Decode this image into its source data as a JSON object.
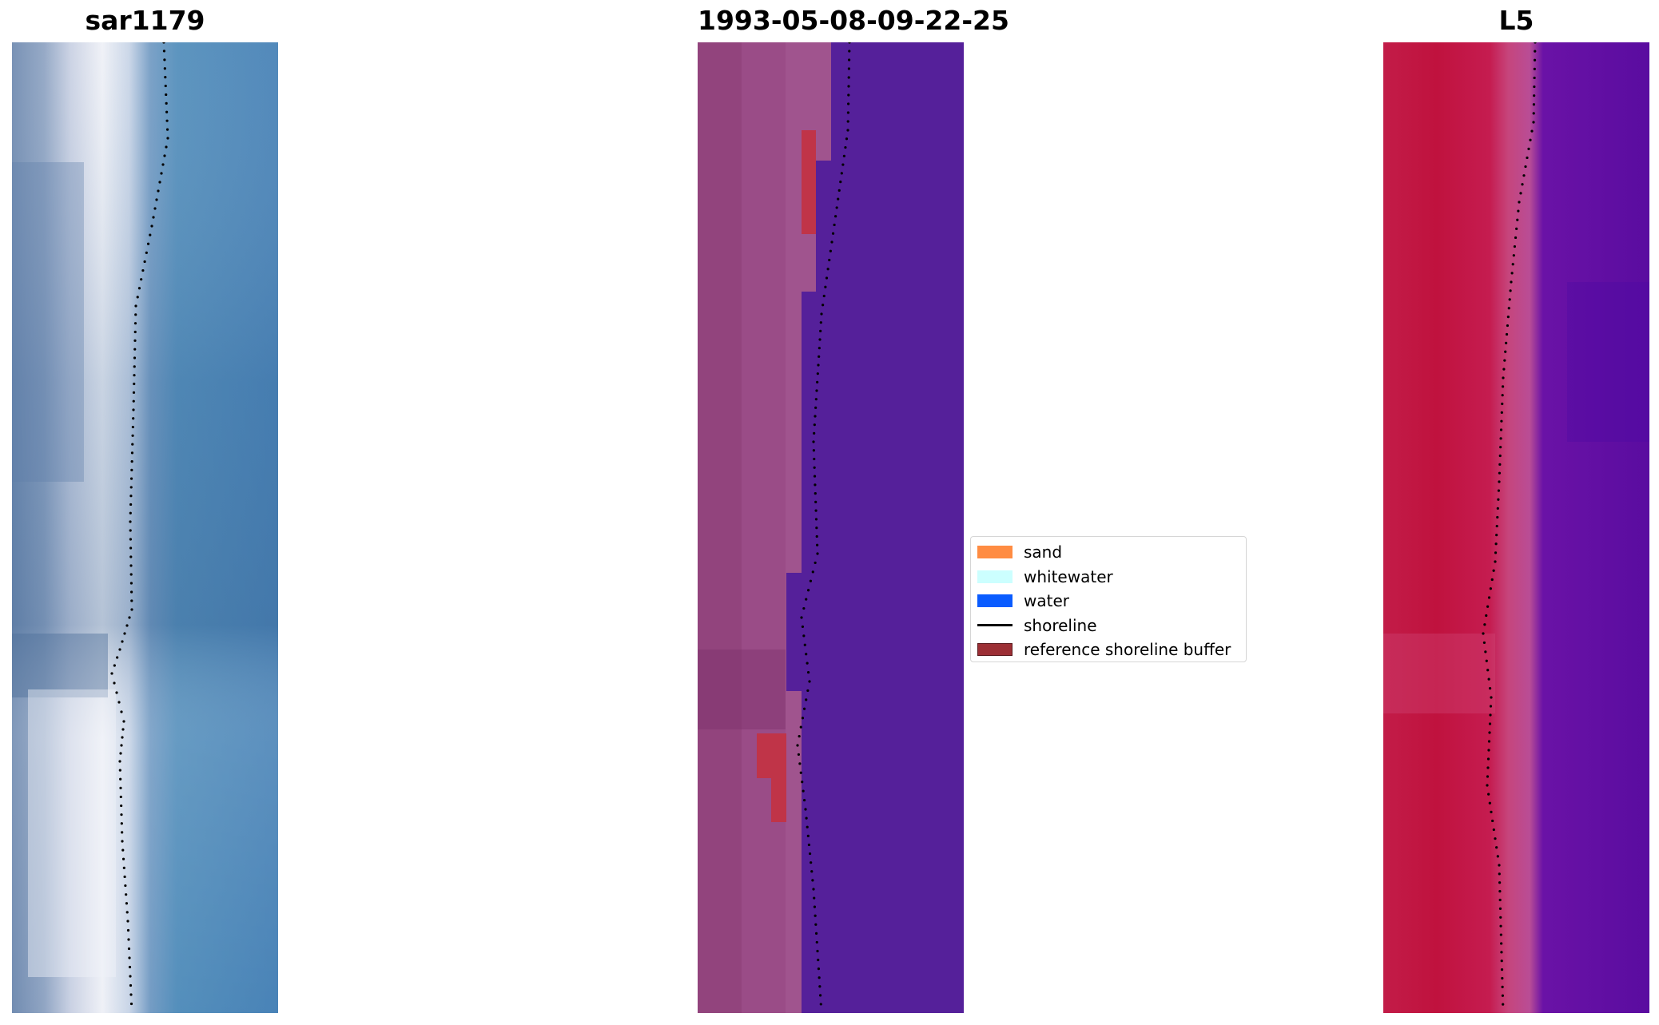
{
  "panels": [
    {
      "id": "rgb",
      "title": "sar1179"
    },
    {
      "id": "classification",
      "title": "1993-05-08-09-22-25"
    },
    {
      "id": "index",
      "title": "L5"
    }
  ],
  "legend": {
    "items": [
      {
        "label": "sand",
        "type": "patch",
        "color": "#ff8c42"
      },
      {
        "label": "whitewater",
        "type": "patch",
        "color": "#ccffff"
      },
      {
        "label": "water",
        "type": "patch",
        "color": "#0a5cff"
      },
      {
        "label": "shoreline",
        "type": "line",
        "color": "#000000"
      },
      {
        "label": "reference shoreline buffer",
        "type": "patch",
        "color": "#9c2f35"
      }
    ]
  },
  "colors": {
    "rgb_water": "#3f7fb4",
    "rgb_surf": "#e8ecf3",
    "classification_sand": "#a35a8f",
    "classification_water": "#55209a",
    "classification_buffer": "#c03448",
    "index_land": "#c0123e",
    "index_water": "#5a0ca0",
    "shoreline_dots": "#000000"
  }
}
